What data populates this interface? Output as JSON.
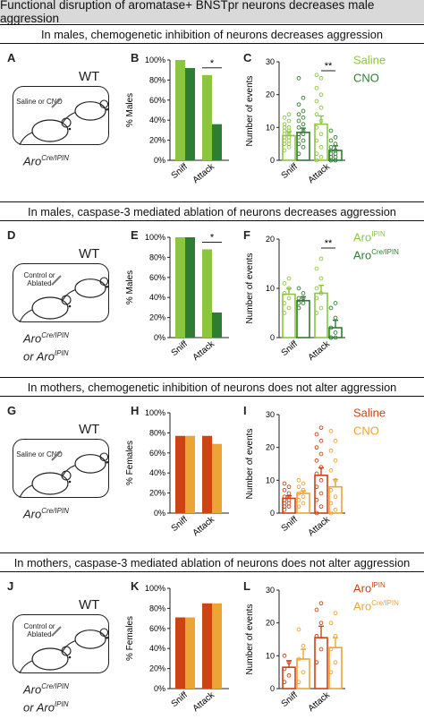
{
  "title": "Functional disruption of aromatase+ BNSTpr neurons decreases male aggression",
  "colors": {
    "male_control": "#8cc63f",
    "male_treat": "#2e7d32",
    "female_control": "#cc4414",
    "female_treat": "#eca436"
  },
  "sections": [
    {
      "banner": "In males, chemogenetic inhibition of neurons decreases aggression",
      "panel_a": "A",
      "panel_b": "B",
      "panel_c": "C",
      "wt": "WT",
      "box_text": [
        "Saline or CNO"
      ],
      "geno_lines": [
        {
          "base": "Aro",
          "sup": "Cre/IPIN"
        }
      ],
      "legend": [
        {
          "base": "Saline",
          "sup": ""
        },
        {
          "base": "CNO",
          "sup": ""
        }
      ],
      "pct_label": "% Males",
      "sig_pct": "*",
      "sig_events": "**",
      "palette": [
        "#8cc63f",
        "#2e7d32"
      ]
    },
    {
      "banner": "In males, caspase-3 mediated ablation of neurons decreases aggression",
      "panel_a": "D",
      "panel_b": "E",
      "panel_c": "F",
      "wt": "WT",
      "box_text": [
        "Control or",
        "Ablated"
      ],
      "geno_lines": [
        {
          "base": "Aro",
          "sup": "Cre/IPIN"
        },
        {
          "base": "or Aro",
          "sup": "IPIN"
        }
      ],
      "legend": [
        {
          "base": "Aro",
          "sup": "IPIN"
        },
        {
          "base": "Aro",
          "sup": "Cre/IPIN"
        }
      ],
      "pct_label": "% Males",
      "sig_pct": "*",
      "sig_events": "**",
      "palette": [
        "#8cc63f",
        "#2e7d32"
      ]
    },
    {
      "banner": "In mothers, chemogenetic inhibition of neurons does not alter aggression",
      "panel_a": "G",
      "panel_b": "H",
      "panel_c": "I",
      "wt": "WT",
      "box_text": [
        "Saline or CNO"
      ],
      "geno_lines": [
        {
          "base": "Aro",
          "sup": "Cre/IPIN"
        }
      ],
      "legend": [
        {
          "base": "Saline",
          "sup": ""
        },
        {
          "base": "CNO",
          "sup": ""
        }
      ],
      "pct_label": "% Females",
      "sig_pct": "",
      "sig_events": "",
      "palette": [
        "#cc4414",
        "#eca436"
      ]
    },
    {
      "banner": "In mothers, caspase-3 mediated ablation of neurons does not alter aggression",
      "panel_a": "J",
      "panel_b": "K",
      "panel_c": "L",
      "wt": "WT",
      "box_text": [
        "Control or",
        "Ablated"
      ],
      "geno_lines": [
        {
          "base": "Aro",
          "sup": "Cre/IPIN"
        },
        {
          "base": "or Aro",
          "sup": "IPIN"
        }
      ],
      "legend": [
        {
          "base": "Aro",
          "sup": "IPIN"
        },
        {
          "base": "Aro",
          "sup": "Cre/IPIN"
        }
      ],
      "pct_label": "% Females",
      "sig_pct": "",
      "sig_events": "",
      "palette": [
        "#cc4414",
        "#eca436"
      ]
    }
  ],
  "chart_data": [
    {
      "panel": "B",
      "type": "bar",
      "categories": [
        "Sniff",
        "Attack"
      ],
      "ylabel": "% Males",
      "ylim": [
        0,
        100
      ],
      "yticks": [
        "0%",
        "20%",
        "40%",
        "60%",
        "80%",
        "100%"
      ],
      "series": [
        {
          "name": "Saline",
          "values": [
            100,
            85
          ]
        },
        {
          "name": "CNO",
          "values": [
            92,
            36
          ]
        }
      ]
    },
    {
      "panel": "C",
      "type": "bar",
      "categories": [
        "Sniff",
        "Attack"
      ],
      "ylabel": "Number of events",
      "ylim": [
        0,
        30
      ],
      "yticks": [
        "0",
        "10",
        "20",
        "30"
      ],
      "series": [
        {
          "name": "Saline",
          "values": [
            7.5,
            11
          ],
          "err": [
            1.2,
            2.5
          ],
          "points": [
            [
              3,
              4,
              5,
              5,
              6,
              6,
              7,
              7,
              8,
              8,
              9,
              9,
              10,
              10,
              11,
              12,
              13,
              14
            ],
            [
              0,
              1,
              2,
              4,
              6,
              8,
              10,
              12,
              14,
              16,
              18,
              20,
              22,
              25,
              26
            ]
          ]
        },
        {
          "name": "CNO",
          "values": [
            8.5,
            3
          ],
          "err": [
            1.3,
            1.4
          ],
          "points": [
            [
              2,
              4,
              5,
              6,
              7,
              8,
              8,
              9,
              10,
              11,
              12,
              13,
              14,
              15,
              17,
              19,
              25
            ],
            [
              0,
              0,
              0,
              0,
              1,
              1,
              2,
              2,
              3,
              3,
              4,
              5,
              6,
              7,
              9
            ]
          ]
        }
      ]
    },
    {
      "panel": "E",
      "type": "bar",
      "categories": [
        "Sniff",
        "Attack"
      ],
      "ylabel": "% Males",
      "ylim": [
        0,
        100
      ],
      "yticks": [
        "0%",
        "20%",
        "40%",
        "60%",
        "80%",
        "100%"
      ],
      "series": [
        {
          "name": "AroIPIN",
          "values": [
            100,
            88
          ]
        },
        {
          "name": "AroCre/IPIN",
          "values": [
            100,
            25
          ]
        }
      ]
    },
    {
      "panel": "F",
      "type": "bar",
      "categories": [
        "Sniff",
        "Attack"
      ],
      "ylabel": "Number of events",
      "ylim": [
        0,
        20
      ],
      "yticks": [
        "0",
        "10",
        "20"
      ],
      "series": [
        {
          "name": "AroIPIN",
          "values": [
            8.8,
            9
          ],
          "err": [
            1.2,
            1.6
          ],
          "points": [
            [
              5,
              6,
              7,
              8,
              9,
              10,
              11,
              12
            ],
            [
              5,
              6,
              8,
              9,
              10,
              12,
              14,
              16
            ]
          ]
        },
        {
          "name": "AroCre/IPIN",
          "values": [
            7.5,
            2
          ],
          "err": [
            0.8,
            1.5
          ],
          "points": [
            [
              6,
              7,
              7,
              8,
              8,
              9,
              10
            ],
            [
              0,
              0,
              0,
              1,
              2,
              4,
              6,
              7
            ]
          ]
        }
      ]
    },
    {
      "panel": "H",
      "type": "bar",
      "categories": [
        "Sniff",
        "Attack"
      ],
      "ylabel": "% Females",
      "ylim": [
        0,
        100
      ],
      "yticks": [
        "0%",
        "20%",
        "40%",
        "60%",
        "80%",
        "100%"
      ],
      "series": [
        {
          "name": "Saline",
          "values": [
            77,
            77
          ]
        },
        {
          "name": "CNO",
          "values": [
            77,
            69
          ]
        }
      ]
    },
    {
      "panel": "I",
      "type": "bar",
      "categories": [
        "Sniff",
        "Attack"
      ],
      "ylabel": "Number of events",
      "ylim": [
        0,
        30
      ],
      "yticks": [
        "0",
        "10",
        "20",
        "30"
      ],
      "series": [
        {
          "name": "Saline",
          "values": [
            4.5,
            11.5
          ],
          "err": [
            0.8,
            2.3
          ],
          "points": [
            [
              1,
              2,
              2,
              3,
              3,
              4,
              4,
              5,
              5,
              6,
              7,
              8,
              9
            ],
            [
              0,
              2,
              4,
              6,
              8,
              10,
              12,
              14,
              16,
              18,
              20,
              22,
              24,
              26
            ]
          ]
        },
        {
          "name": "CNO",
          "values": [
            6,
            8
          ],
          "err": [
            0.8,
            2.2
          ],
          "points": [
            [
              2,
              3,
              4,
              5,
              6,
              7,
              8,
              9,
              10
            ],
            [
              0,
              1,
              3,
              5,
              7,
              10,
              13,
              16,
              19,
              22,
              25
            ]
          ]
        }
      ]
    },
    {
      "panel": "K",
      "type": "bar",
      "categories": [
        "Sniff",
        "Attack"
      ],
      "ylabel": "% Females",
      "ylim": [
        0,
        100
      ],
      "yticks": [
        "0%",
        "20%",
        "40%",
        "60%",
        "80%",
        "100%"
      ],
      "series": [
        {
          "name": "AroIPIN",
          "values": [
            71,
            85
          ]
        },
        {
          "name": "AroCre/IPIN",
          "values": [
            71,
            85
          ]
        }
      ]
    },
    {
      "panel": "L",
      "type": "bar",
      "categories": [
        "Sniff",
        "Attack"
      ],
      "ylabel": "Number of events",
      "ylim": [
        0,
        30
      ],
      "yticks": [
        "0",
        "10",
        "20",
        "30"
      ],
      "series": [
        {
          "name": "AroIPIN",
          "values": [
            6.5,
            15.5
          ],
          "err": [
            2,
            3.5
          ],
          "points": [
            [
              2,
              4,
              6,
              8,
              10
            ],
            [
              8,
              12,
              16,
              20,
              24,
              26
            ]
          ]
        },
        {
          "name": "AroCre/IPIN",
          "values": [
            9,
            12.5
          ],
          "err": [
            3,
            3
          ],
          "points": [
            [
              2,
              5,
              9,
              13,
              18
            ],
            [
              5,
              8,
              12,
              16,
              20,
              23
            ]
          ]
        }
      ]
    }
  ]
}
